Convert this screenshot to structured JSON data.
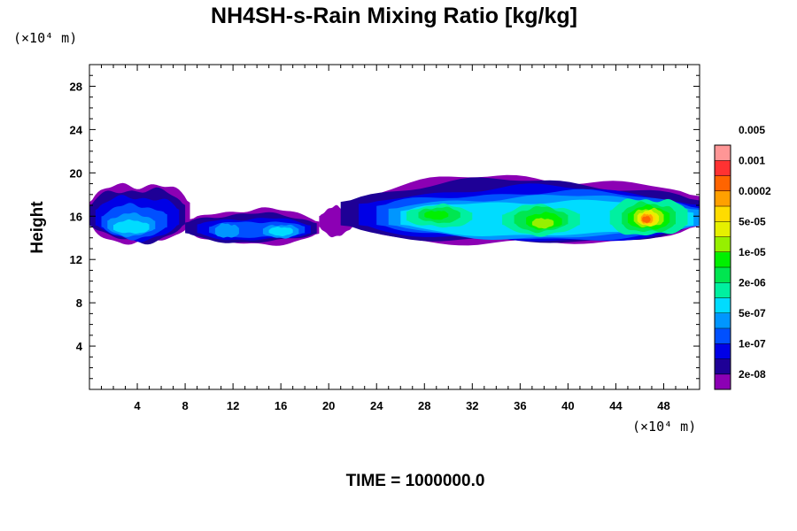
{
  "chart_data": {
    "type": "heatmap",
    "title": "NH4SH-s-Rain Mixing Ratio [kg/kg]",
    "ylabel": "Height",
    "x_unit": "(×10⁴ m)",
    "y_unit": "(×10⁴ m)",
    "xlim": [
      0,
      51
    ],
    "ylim": [
      0,
      30
    ],
    "x_ticks": [
      "4",
      "8",
      "12",
      "16",
      "20",
      "24",
      "28",
      "32",
      "36",
      "40",
      "44",
      "48"
    ],
    "y_ticks": [
      "4",
      "8",
      "12",
      "16",
      "20",
      "24",
      "28"
    ],
    "footer": "TIME = 1000000.0",
    "colorbar": {
      "colors": [
        "#8c00b4",
        "#1e0096",
        "#0000e6",
        "#0050ff",
        "#0096ff",
        "#00dcff",
        "#00f0a0",
        "#00e650",
        "#00f000",
        "#96f000",
        "#e6f000",
        "#ffdc00",
        "#ffa000",
        "#ff6400",
        "#ff3232",
        "#ff9696"
      ],
      "labels": [
        "2e-08",
        "1e-07",
        "5e-07",
        "2e-06",
        "1e-05",
        "5e-05",
        "0.0002",
        "0.001",
        "0.005"
      ]
    },
    "regions": [
      {
        "level": 0,
        "x0": 0.0,
        "x1": 8.4,
        "ymin": 13.5,
        "ymax": 19.0
      },
      {
        "level": 0,
        "x0": 8.4,
        "x1": 19.2,
        "ymin": 13.4,
        "ymax": 16.6
      },
      {
        "level": 0,
        "x0": 19.2,
        "x1": 22.0,
        "ymin": 14.2,
        "ymax": 16.8
      },
      {
        "level": 0,
        "x0": 22.0,
        "x1": 51.0,
        "ymin": 13.3,
        "ymax": 19.6
      },
      {
        "level": 1,
        "x0": 0.0,
        "x1": 8.0,
        "ymin": 13.7,
        "ymax": 18.5
      },
      {
        "level": 1,
        "x0": 8.0,
        "x1": 19.0,
        "ymin": 13.6,
        "ymax": 16.2
      },
      {
        "level": 1,
        "x0": 21.0,
        "x1": 51.0,
        "ymin": 13.5,
        "ymax": 19.2
      },
      {
        "level": 2,
        "x0": 0.5,
        "x1": 7.5,
        "ymin": 13.9,
        "ymax": 17.8
      },
      {
        "level": 2,
        "x0": 9.0,
        "x1": 18.5,
        "ymin": 13.8,
        "ymax": 15.8
      },
      {
        "level": 2,
        "x0": 22.5,
        "x1": 51.0,
        "ymin": 13.7,
        "ymax": 18.6
      },
      {
        "level": 3,
        "x0": 1.0,
        "x1": 6.5,
        "ymin": 14.0,
        "ymax": 17.0
      },
      {
        "level": 3,
        "x0": 10.0,
        "x1": 18.0,
        "ymin": 14.0,
        "ymax": 15.5
      },
      {
        "level": 3,
        "x0": 24.0,
        "x1": 51.0,
        "ymin": 13.9,
        "ymax": 18.2
      },
      {
        "level": 4,
        "x0": 1.5,
        "x1": 5.5,
        "ymin": 14.2,
        "ymax": 16.2
      },
      {
        "level": 4,
        "x0": 10.5,
        "x1": 12.5,
        "ymin": 14.0,
        "ymax": 15.3
      },
      {
        "level": 4,
        "x0": 14.5,
        "x1": 17.5,
        "ymin": 14.0,
        "ymax": 15.2
      },
      {
        "level": 4,
        "x0": 25.0,
        "x1": 51.0,
        "ymin": 14.0,
        "ymax": 17.8
      },
      {
        "level": 5,
        "x0": 2.0,
        "x1": 5.0,
        "ymin": 14.4,
        "ymax": 15.6
      },
      {
        "level": 5,
        "x0": 15.0,
        "x1": 17.0,
        "ymin": 14.2,
        "ymax": 15.0
      },
      {
        "level": 5,
        "x0": 26.0,
        "x1": 50.5,
        "ymin": 14.2,
        "ymax": 17.4
      },
      {
        "level": 6,
        "x0": 26.5,
        "x1": 32.0,
        "ymin": 15.0,
        "ymax": 17.0
      },
      {
        "level": 6,
        "x0": 34.5,
        "x1": 41.0,
        "ymin": 14.3,
        "ymax": 17.0
      },
      {
        "level": 6,
        "x0": 43.5,
        "x1": 50.0,
        "ymin": 14.2,
        "ymax": 17.6
      },
      {
        "level": 7,
        "x0": 27.5,
        "x1": 31.0,
        "ymin": 15.4,
        "ymax": 16.8
      },
      {
        "level": 7,
        "x0": 35.5,
        "x1": 40.0,
        "ymin": 14.6,
        "ymax": 16.8
      },
      {
        "level": 7,
        "x0": 44.5,
        "x1": 49.0,
        "ymin": 14.5,
        "ymax": 17.2
      },
      {
        "level": 8,
        "x0": 28.0,
        "x1": 30.0,
        "ymin": 15.7,
        "ymax": 16.5
      },
      {
        "level": 8,
        "x0": 36.5,
        "x1": 39.5,
        "ymin": 14.8,
        "ymax": 16.3
      },
      {
        "level": 8,
        "x0": 45.0,
        "x1": 48.5,
        "ymin": 14.8,
        "ymax": 16.9
      },
      {
        "level": 9,
        "x0": 37.0,
        "x1": 38.8,
        "ymin": 14.9,
        "ymax": 15.8
      },
      {
        "level": 9,
        "x0": 45.5,
        "x1": 48.0,
        "ymin": 15.0,
        "ymax": 16.7
      },
      {
        "level": 10,
        "x0": 45.8,
        "x1": 47.6,
        "ymin": 15.1,
        "ymax": 16.5
      },
      {
        "level": 11,
        "x0": 46.0,
        "x1": 47.3,
        "ymin": 15.2,
        "ymax": 16.3
      },
      {
        "level": 12,
        "x0": 46.1,
        "x1": 47.1,
        "ymin": 15.3,
        "ymax": 16.2
      },
      {
        "level": 13,
        "x0": 46.2,
        "x1": 46.9,
        "ymin": 15.4,
        "ymax": 16.0
      }
    ]
  }
}
